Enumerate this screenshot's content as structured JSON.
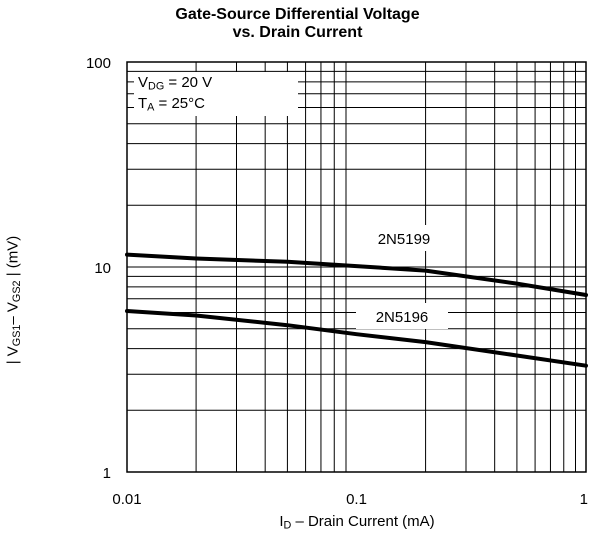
{
  "chart_data": {
    "type": "line",
    "title": "Gate-Source Differential Voltage",
    "subtitle": "vs. Drain Current",
    "xlabel": {
      "pre": "I",
      "sub": "D",
      "post": " – Drain Current (mA)"
    },
    "ylabel": {
      "v1": "V",
      "s1": "GS1",
      "mid": "– V",
      "s2": "GS2",
      "bar": "|",
      "unit": "(mV)"
    },
    "xscale": "log",
    "yscale": "log",
    "xlim": [
      0.01,
      1
    ],
    "ylim": [
      1,
      100
    ],
    "x_ticks": [
      "0.01",
      "0.1",
      "1"
    ],
    "y_ticks": [
      "1",
      "10",
      "100"
    ],
    "grid": true,
    "annotations": {
      "vdg": {
        "pre": "V",
        "sub": "DG",
        "post": " = 20 V"
      },
      "ta": {
        "pre": "T",
        "sub": "A",
        "post": " = 25°C"
      }
    },
    "series": [
      {
        "name": "2N5199",
        "x": [
          0.01,
          0.02,
          0.05,
          0.1,
          0.2,
          0.5,
          1.0
        ],
        "y": [
          11.5,
          11.0,
          10.6,
          10.1,
          9.6,
          8.3,
          7.3
        ]
      },
      {
        "name": "2N5196",
        "x": [
          0.01,
          0.02,
          0.05,
          0.1,
          0.2,
          0.5,
          1.0
        ],
        "y": [
          6.1,
          5.8,
          5.2,
          4.7,
          4.3,
          3.7,
          3.3
        ]
      }
    ],
    "colors": {
      "line": "#000000",
      "grid": "#000000",
      "background": "#ffffff"
    }
  }
}
